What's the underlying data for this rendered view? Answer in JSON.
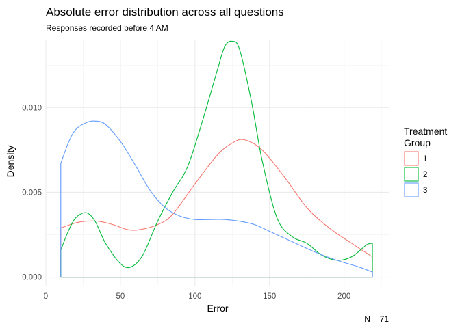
{
  "chart_data": {
    "type": "line",
    "title": "Absolute error distribution across all questions",
    "subtitle": "Responses recorded before 4 AM",
    "xlabel": "Error",
    "ylabel": "Density",
    "caption": "N = 71",
    "xlim": [
      0,
      230
    ],
    "ylim": [
      -0.0005,
      0.014
    ],
    "x_ticks": [
      0,
      50,
      100,
      150,
      200
    ],
    "x_tick_labels": [
      "0",
      "50",
      "100",
      "150",
      "200"
    ],
    "y_ticks": [
      0.0,
      0.005,
      0.01
    ],
    "y_tick_labels": [
      "0.000",
      "0.005",
      "0.010"
    ],
    "grid": true,
    "legend": {
      "title": "Treatment Group",
      "title_lines": [
        "Treatment",
        "Group"
      ],
      "position": "right"
    },
    "series": [
      {
        "name": "1",
        "color": "#F8766D",
        "x": [
          10,
          20,
          27,
          35,
          45,
          55,
          63,
          75,
          85,
          100,
          115,
          125,
          133,
          145,
          160,
          175,
          190,
          205,
          219
        ],
        "y": [
          0.0029,
          0.0032,
          0.0033,
          0.0033,
          0.0031,
          0.0028,
          0.0028,
          0.0031,
          0.0037,
          0.0055,
          0.0072,
          0.0079,
          0.0081,
          0.0075,
          0.0059,
          0.0041,
          0.0029,
          0.002,
          0.0012
        ]
      },
      {
        "name": "2",
        "color": "#00BA38",
        "x": [
          10,
          15,
          20,
          27,
          33,
          40,
          50,
          57,
          65,
          75,
          85,
          95,
          105,
          115,
          120,
          125,
          130,
          138,
          145,
          155,
          165,
          175,
          185,
          195,
          205,
          215,
          219
        ],
        "y": [
          0.0016,
          0.0027,
          0.0035,
          0.0038,
          0.0033,
          0.002,
          0.0008,
          0.0006,
          0.0013,
          0.0033,
          0.005,
          0.0065,
          0.0092,
          0.0122,
          0.0136,
          0.0139,
          0.0134,
          0.0103,
          0.0069,
          0.0035,
          0.0024,
          0.002,
          0.0013,
          0.001,
          0.0012,
          0.0019,
          0.002
        ]
      },
      {
        "name": "3",
        "color": "#619CFF",
        "x": [
          10,
          15,
          20,
          27,
          33,
          40,
          50,
          60,
          70,
          80,
          90,
          100,
          110,
          120,
          130,
          140,
          150,
          165,
          180,
          195,
          210,
          219
        ],
        "y": [
          0.0067,
          0.0079,
          0.0087,
          0.0091,
          0.0092,
          0.009,
          0.008,
          0.0066,
          0.0051,
          0.0041,
          0.0036,
          0.0034,
          0.0034,
          0.0034,
          0.0033,
          0.0031,
          0.0027,
          0.0021,
          0.0015,
          0.001,
          0.0006,
          0.0003
        ]
      }
    ]
  }
}
